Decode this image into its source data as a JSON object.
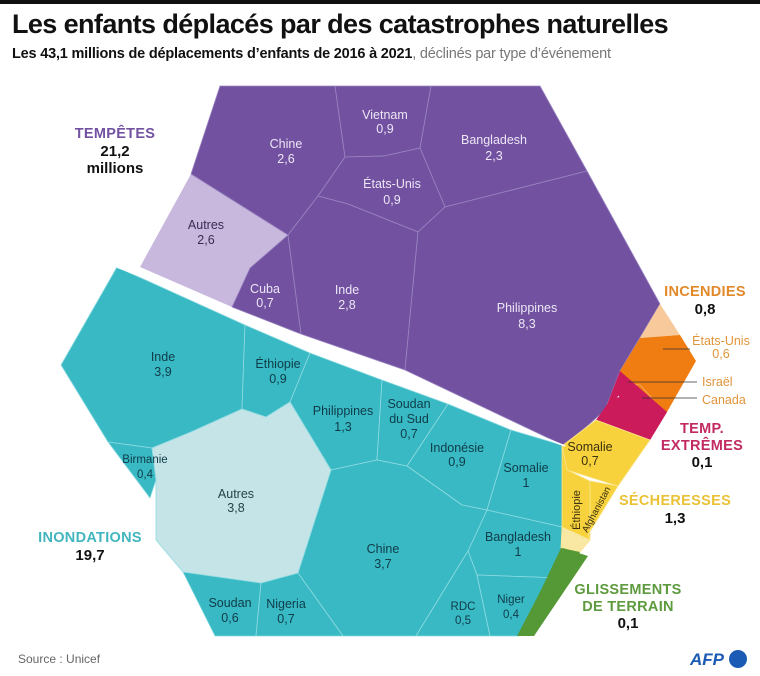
{
  "header": {
    "title": "Les enfants déplacés par des catastrophes naturelles",
    "subtitle_bold": "Les 43,1 millions de déplacements d’enfants de 2016 à 2021",
    "subtitle_light": ", déclinés par type d’événement"
  },
  "footer": {
    "source": "Source : Unicef",
    "logo_text": "AFP"
  },
  "colors": {
    "tempetes": "#7252a0",
    "tempetes_autres": "#c8b8dd",
    "inondations": "#38b9c4",
    "inondations_autres": "#c5e4e7",
    "incendies_light": "#f7c99b",
    "incendies": "#ef7d12",
    "temp_extremes": "#cc1b5b",
    "secheresses": "#f7d23c",
    "secheresses_light": "#f9e7a4",
    "glissements": "#559937",
    "afp_blue": "#1c5bb5"
  },
  "chart_data": {
    "type": "voronoi-treemap",
    "title": "Les enfants déplacés par des catastrophes naturelles",
    "subtitle": "Les 43,1 millions de déplacements d’enfants de 2016 à 2021, déclinés par type d’événement",
    "unit": "millions",
    "total": "43,1",
    "categories": [
      {
        "name": "TEMPÊTES",
        "value": "21,2",
        "unit_label": "millions",
        "children": [
          {
            "name": "Philippines",
            "value": "8,3"
          },
          {
            "name": "Inde",
            "value": "2,8"
          },
          {
            "name": "Chine",
            "value": "2,6"
          },
          {
            "name": "Autres",
            "value": "2,6"
          },
          {
            "name": "Bangladesh",
            "value": "2,3"
          },
          {
            "name": "Vietnam",
            "value": "0,9"
          },
          {
            "name": "États-Unis",
            "value": "0,9"
          },
          {
            "name": "Cuba",
            "value": "0,7"
          }
        ]
      },
      {
        "name": "INONDATIONS",
        "value": "19,7",
        "children": [
          {
            "name": "Inde",
            "value": "3,9"
          },
          {
            "name": "Autres",
            "value": "3,8"
          },
          {
            "name": "Chine",
            "value": "3,7"
          },
          {
            "name": "Philippines",
            "value": "1,3"
          },
          {
            "name": "Somalie",
            "value": "1"
          },
          {
            "name": "Bangladesh",
            "value": "1"
          },
          {
            "name": "Éthiopie",
            "value": "0,9"
          },
          {
            "name": "Indonésie",
            "value": "0,9"
          },
          {
            "name": "Soudan du Sud",
            "line1": "Soudan",
            "line2": "du Sud",
            "value": "0,7"
          },
          {
            "name": "Nigeria",
            "value": "0,7"
          },
          {
            "name": "Soudan",
            "value": "0,6"
          },
          {
            "name": "RDC",
            "value": "0,5"
          },
          {
            "name": "Birmanie",
            "value": "0,4"
          },
          {
            "name": "Niger",
            "value": "0,4"
          }
        ]
      },
      {
        "name": "INCENDIES",
        "value": "0,8",
        "children": [
          {
            "name": "États-Unis",
            "value": "0,6"
          },
          {
            "name": "Israël"
          },
          {
            "name": "Canada"
          }
        ]
      },
      {
        "name": "TEMP. EXTRÊMES",
        "line1": "TEMP.",
        "line2": "EXTRÊMES",
        "value": "0,1"
      },
      {
        "name": "SÉCHERESSES",
        "value": "1,3",
        "children": [
          {
            "name": "Somalie",
            "value": "0,7"
          },
          {
            "name": "Éthiopie"
          },
          {
            "name": "Afghanistan"
          }
        ]
      },
      {
        "name": "GLISSEMENTS DE TERRAIN",
        "line1": "GLISSEMENTS",
        "line2": "DE TERRAIN",
        "value": "0,1"
      }
    ]
  }
}
